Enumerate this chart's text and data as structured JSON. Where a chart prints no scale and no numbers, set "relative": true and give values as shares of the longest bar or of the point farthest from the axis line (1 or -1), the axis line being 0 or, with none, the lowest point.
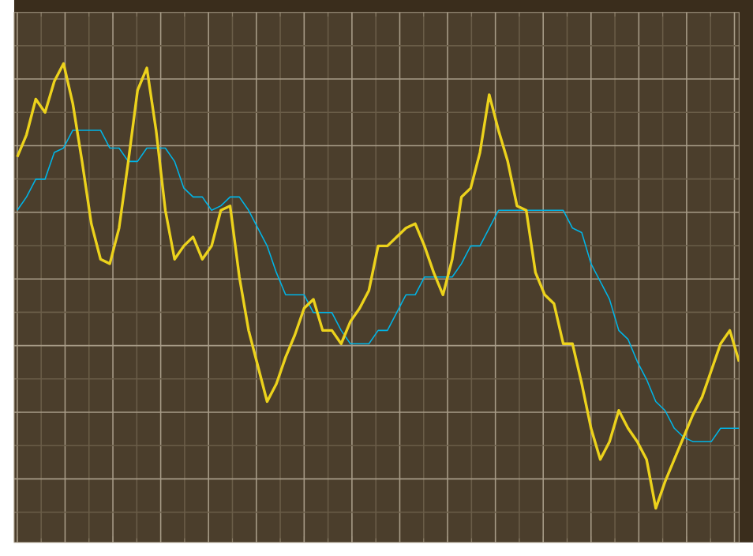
{
  "chart_data": {
    "type": "line",
    "relative": true,
    "grid": true,
    "tick_labels": false,
    "categories": [
      null,
      null,
      null,
      null,
      null,
      null,
      null,
      null,
      null,
      null,
      null,
      null,
      null,
      null,
      null,
      null,
      null,
      null,
      null,
      null,
      null,
      null,
      null,
      null,
      null,
      null,
      null,
      null,
      null,
      null,
      null,
      null,
      null,
      null,
      null,
      null,
      null,
      null,
      null,
      null,
      null,
      null,
      null,
      null,
      null,
      null,
      null,
      null,
      null,
      null,
      null,
      null,
      null,
      null,
      null,
      null,
      null,
      null,
      null,
      null,
      null,
      null,
      null,
      null,
      null,
      null,
      null,
      null,
      null,
      null,
      null,
      null,
      null,
      null,
      null,
      null,
      null,
      null,
      null
    ],
    "series": [
      {
        "color": "#00b4e6",
        "values": [
          0.67,
          0.7,
          0.74,
          0.74,
          0.8,
          0.81,
          0.85,
          0.85,
          0.85,
          0.85,
          0.81,
          0.81,
          0.78,
          0.78,
          0.81,
          0.81,
          0.81,
          0.78,
          0.72,
          0.7,
          0.7,
          0.67,
          0.68,
          0.7,
          0.7,
          0.67,
          0.63,
          0.59,
          0.53,
          0.48,
          0.48,
          0.48,
          0.44,
          0.44,
          0.44,
          0.4,
          0.37,
          0.37,
          0.37,
          0.4,
          0.4,
          0.44,
          0.48,
          0.48,
          0.52,
          0.52,
          0.52,
          0.52,
          0.55,
          0.59,
          0.59,
          0.63,
          0.67,
          0.67,
          0.67,
          0.67,
          0.67,
          0.67,
          0.67,
          0.67,
          0.63,
          0.62,
          0.55,
          0.51,
          0.47,
          0.4,
          0.38,
          0.33,
          0.29,
          0.24,
          0.22,
          0.18,
          0.16,
          0.15,
          0.15,
          0.15,
          0.18,
          0.18,
          0.18
        ]
      },
      {
        "color": "#ecd21c",
        "values": [
          0.79,
          0.84,
          0.92,
          0.89,
          0.96,
          1.0,
          0.91,
          0.78,
          0.64,
          0.56,
          0.55,
          0.63,
          0.78,
          0.94,
          0.99,
          0.85,
          0.67,
          0.56,
          0.59,
          0.61,
          0.56,
          0.59,
          0.67,
          0.68,
          0.52,
          0.4,
          0.32,
          0.24,
          0.28,
          0.34,
          0.39,
          0.45,
          0.47,
          0.4,
          0.4,
          0.37,
          0.42,
          0.45,
          0.49,
          0.59,
          0.59,
          0.61,
          0.63,
          0.64,
          0.59,
          0.53,
          0.48,
          0.56,
          0.7,
          0.72,
          0.8,
          0.93,
          0.85,
          0.78,
          0.68,
          0.67,
          0.53,
          0.48,
          0.46,
          0.37,
          0.37,
          0.28,
          0.18,
          0.11,
          0.15,
          0.22,
          0.18,
          0.15,
          0.11,
          0,
          0.06,
          0.11,
          0.16,
          0.21,
          0.25,
          0.31,
          0.37,
          0.4,
          0.33
        ]
      }
    ]
  }
}
